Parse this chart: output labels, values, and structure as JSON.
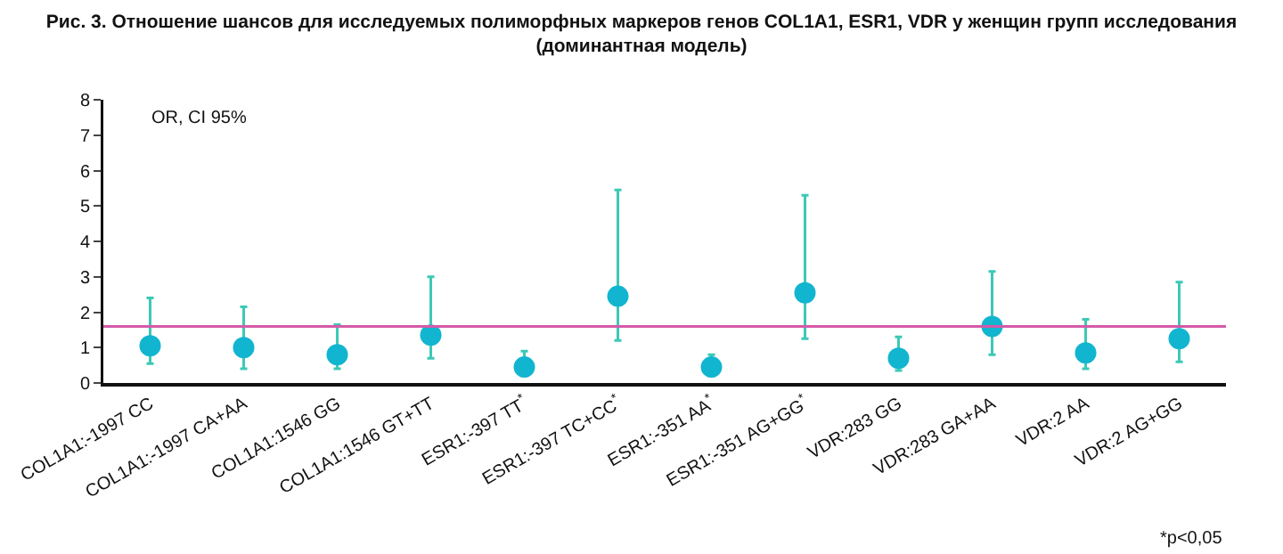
{
  "chart_data": {
    "type": "scatter",
    "title": "Рис. 3. Отношение шансов для исследуемых полиморфных маркеров генов COL1A1, ESR1, VDR у женщин групп исследования (доминантная модель)",
    "categories": [
      "COL1A1:-1997 CC",
      "COL1A1:-1997 CA+AA",
      "COL1A1:1546 GG",
      "COL1A1:1546 GT+TT",
      "ESR1:-397 TT$^{*}$",
      "ESR1:-397 TC+CC$^{*}$",
      "ESR1:-351 AA$^{*}$",
      "ESR1:-351 AG+GG$^{*}$",
      "VDR:283 GG",
      "VDR:283 GA+AA",
      "VDR:2 AA",
      "VDR:2 AG+GG"
    ],
    "series": [
      {
        "color": "#12b5d0",
        "values": [
          1.05,
          1.0,
          0.8,
          1.35,
          0.45,
          2.45,
          0.45,
          2.55,
          0.7,
          1.6,
          0.85,
          1.25
        ],
        "errors": [
          [
            0.55,
            2.4
          ],
          [
            0.4,
            2.15
          ],
          [
            0.4,
            1.65
          ],
          [
            0.7,
            3.0
          ],
          [
            0.2,
            0.9
          ],
          [
            1.2,
            5.45
          ],
          [
            0.2,
            0.8
          ],
          [
            1.25,
            5.3
          ],
          [
            0.35,
            1.3
          ],
          [
            0.8,
            3.15
          ],
          [
            0.4,
            1.8
          ],
          [
            0.6,
            2.85
          ]
        ]
      }
    ],
    "marker": "circle",
    "ylim": [
      0,
      8
    ],
    "yticks": [
      0,
      1,
      2,
      3,
      4,
      5,
      6,
      7,
      8
    ],
    "grid": false,
    "ref_lines": [
      {
        "axis": "y",
        "value": 1.6,
        "color": "#d45aa8"
      }
    ],
    "annotations": [
      "OR, CI 95%",
      "*p<0,05"
    ]
  }
}
